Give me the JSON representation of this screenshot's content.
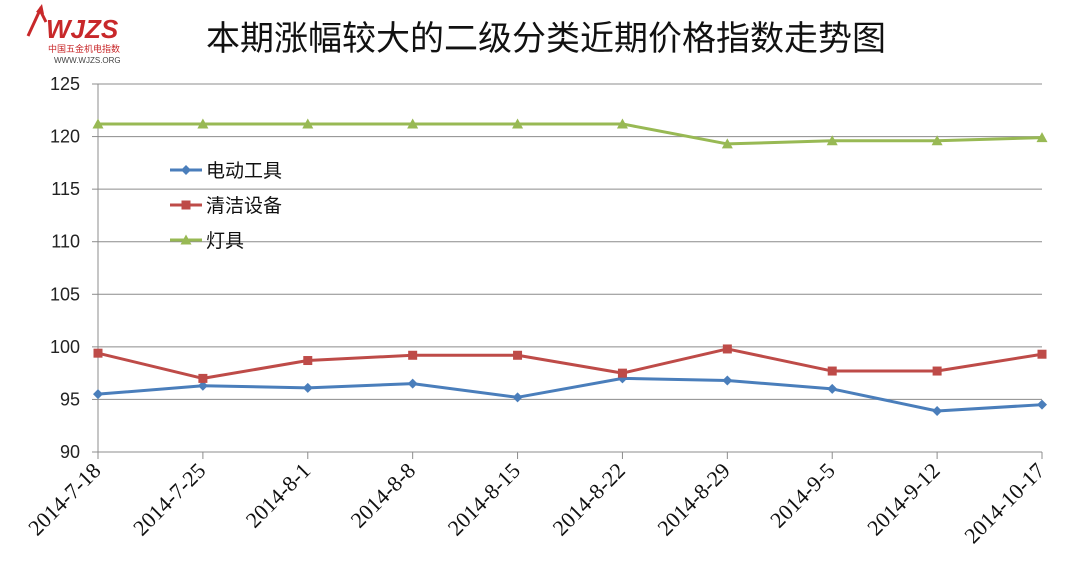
{
  "logo": {
    "text": "WJZS",
    "subtitle": "中国五金机电指数",
    "url": "WWW.WJZS.ORG"
  },
  "chart_data": {
    "type": "line",
    "title": "本期涨幅较大的二级分类近期价格指数走势图",
    "categories": [
      "2014-7-18",
      "2014-7-25",
      "2014-8-1",
      "2014-8-8",
      "2014-8-15",
      "2014-8-22",
      "2014-8-29",
      "2014-9-5",
      "2014-9-12",
      "2014-10-17"
    ],
    "ylim": [
      90,
      125
    ],
    "yticks": [
      90,
      95,
      100,
      105,
      110,
      115,
      120,
      125
    ],
    "grid": true,
    "legend_position": "left",
    "series": [
      {
        "name": "电动工具",
        "color": "#4a7ebb",
        "marker": "diamond",
        "values": [
          95.5,
          96.3,
          96.1,
          96.5,
          95.2,
          97.0,
          96.8,
          96.0,
          93.9,
          94.5
        ]
      },
      {
        "name": "清洁设备",
        "color": "#be4b48",
        "marker": "square",
        "values": [
          99.4,
          97.0,
          98.7,
          99.2,
          99.2,
          97.5,
          99.8,
          97.7,
          97.7,
          99.3
        ]
      },
      {
        "name": "灯具",
        "color": "#98b954",
        "marker": "triangle",
        "values": [
          121.2,
          121.2,
          121.2,
          121.2,
          121.2,
          121.2,
          119.3,
          119.6,
          119.6,
          119.9
        ]
      }
    ]
  }
}
